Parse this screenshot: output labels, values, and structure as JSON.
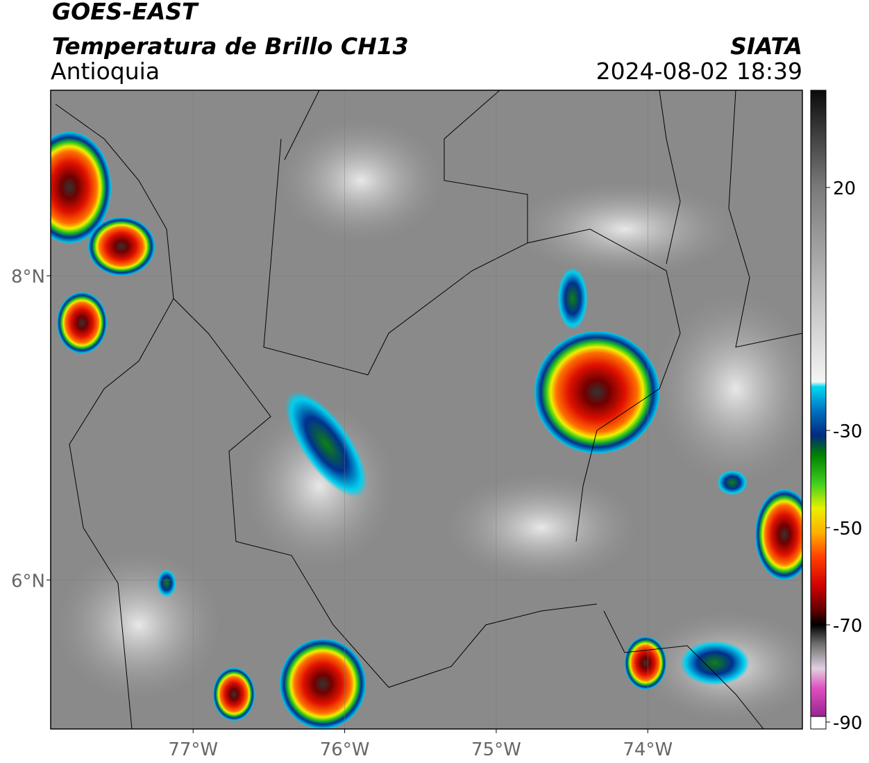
{
  "map": {
    "title": "GOES-EAST",
    "subtitle": "Temperatura de Brillo CH13",
    "region": "Antioquia",
    "source": "SIATA",
    "timestamp": "2024-08-02 18:39",
    "xlim": [
      -77.94,
      -72.98
    ],
    "ylim": [
      5.02,
      9.22
    ],
    "xticks": [
      {
        "value": -77,
        "label": "77°W"
      },
      {
        "value": -76,
        "label": "76°W"
      },
      {
        "value": -75,
        "label": "75°W"
      },
      {
        "value": -74,
        "label": "74°W"
      }
    ],
    "yticks": [
      {
        "value": 8,
        "label": "8°N"
      },
      {
        "value": 6,
        "label": "6°N"
      }
    ],
    "grid": true,
    "colorbar": {
      "clim": [
        -90,
        40
      ],
      "ticks": [
        20,
        -30,
        -50,
        -70,
        -90
      ],
      "colormap": [
        {
          "value": 40,
          "color": "#0a0a0a"
        },
        {
          "value": 30,
          "color": "#444444"
        },
        {
          "value": 20,
          "color": "#7a7a7a"
        },
        {
          "value": 0,
          "color": "#b8b8b8"
        },
        {
          "value": -20,
          "color": "#f4f4f4"
        },
        {
          "value": -21,
          "color": "#00d8f0"
        },
        {
          "value": -26,
          "color": "#0070c0"
        },
        {
          "value": -31,
          "color": "#002a80"
        },
        {
          "value": -35,
          "color": "#008000"
        },
        {
          "value": -41,
          "color": "#40d020"
        },
        {
          "value": -46,
          "color": "#e8f000"
        },
        {
          "value": -51,
          "color": "#ffb000"
        },
        {
          "value": -56,
          "color": "#ff4000"
        },
        {
          "value": -62,
          "color": "#d00000"
        },
        {
          "value": -67,
          "color": "#600000"
        },
        {
          "value": -70,
          "color": "#000000"
        },
        {
          "value": -74,
          "color": "#707070"
        },
        {
          "value": -79,
          "color": "#e0d0e0"
        },
        {
          "value": -83,
          "color": "#e050c0"
        },
        {
          "value": -90,
          "color": "#8a1a8a"
        }
      ]
    }
  }
}
